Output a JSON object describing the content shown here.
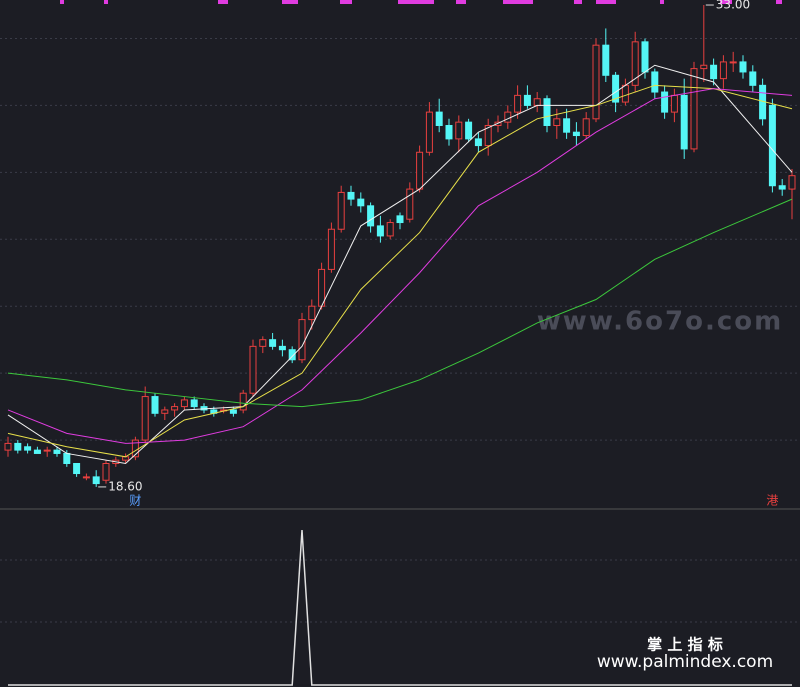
{
  "chart_data": [
    {
      "type": "candlestick",
      "ylim": [
        18.0,
        33.15
      ],
      "grid_values": [
        20,
        22,
        24,
        26,
        28,
        30,
        32
      ],
      "up_color": "#e8403f",
      "down_color": "#54f6f6",
      "ohlc": [
        [
          19.7,
          20.1,
          19.5,
          19.9
        ],
        [
          19.9,
          20.0,
          19.6,
          19.7
        ],
        [
          19.8,
          19.9,
          19.6,
          19.7
        ],
        [
          19.7,
          19.8,
          19.6,
          19.6
        ],
        [
          19.7,
          19.8,
          19.5,
          19.7
        ],
        [
          19.7,
          19.8,
          19.5,
          19.6
        ],
        [
          19.6,
          19.7,
          19.2,
          19.3
        ],
        [
          19.3,
          19.3,
          18.9,
          19.0
        ],
        [
          18.9,
          19.0,
          18.8,
          18.9
        ],
        [
          18.9,
          19.1,
          18.6,
          18.7
        ],
        [
          18.8,
          19.4,
          18.7,
          19.3
        ],
        [
          19.3,
          19.5,
          19.2,
          19.4
        ],
        [
          19.4,
          19.6,
          19.3,
          19.5
        ],
        [
          19.5,
          20.1,
          19.4,
          20.0
        ],
        [
          20.0,
          21.6,
          19.9,
          21.3
        ],
        [
          21.3,
          21.4,
          20.7,
          20.8
        ],
        [
          20.8,
          21.0,
          20.6,
          20.9
        ],
        [
          20.9,
          21.1,
          20.7,
          21.0
        ],
        [
          21.0,
          21.3,
          20.9,
          21.2
        ],
        [
          21.2,
          21.3,
          20.9,
          21.0
        ],
        [
          21.0,
          21.1,
          20.8,
          20.9
        ],
        [
          20.9,
          21.0,
          20.7,
          20.8
        ],
        [
          20.9,
          21.0,
          20.8,
          20.9
        ],
        [
          20.9,
          21.0,
          20.7,
          20.8
        ],
        [
          20.9,
          21.5,
          20.8,
          21.4
        ],
        [
          21.4,
          23.0,
          21.3,
          22.8
        ],
        [
          22.8,
          23.1,
          22.6,
          23.0
        ],
        [
          23.0,
          23.2,
          22.7,
          22.8
        ],
        [
          22.8,
          23.0,
          22.5,
          22.7
        ],
        [
          22.7,
          22.8,
          22.3,
          22.4
        ],
        [
          22.4,
          23.8,
          22.3,
          23.6
        ],
        [
          23.6,
          24.2,
          23.3,
          24.0
        ],
        [
          24.0,
          25.3,
          23.9,
          25.1
        ],
        [
          25.1,
          26.5,
          25.0,
          26.3
        ],
        [
          26.3,
          27.6,
          26.2,
          27.4
        ],
        [
          27.4,
          27.6,
          27.0,
          27.2
        ],
        [
          27.2,
          27.4,
          26.8,
          27.0
        ],
        [
          27.0,
          27.1,
          26.2,
          26.4
        ],
        [
          26.4,
          26.7,
          25.9,
          26.1
        ],
        [
          26.1,
          26.6,
          26.0,
          26.5
        ],
        [
          26.7,
          26.8,
          26.3,
          26.5
        ],
        [
          26.6,
          27.7,
          26.5,
          27.5
        ],
        [
          27.5,
          28.8,
          27.4,
          28.6
        ],
        [
          28.6,
          30.1,
          28.5,
          29.8
        ],
        [
          29.8,
          30.2,
          29.2,
          29.4
        ],
        [
          29.4,
          29.6,
          28.8,
          29.0
        ],
        [
          29.0,
          29.7,
          28.6,
          29.5
        ],
        [
          29.5,
          29.6,
          28.9,
          29.0
        ],
        [
          29.0,
          29.2,
          28.6,
          28.8
        ],
        [
          28.8,
          29.6,
          28.5,
          29.4
        ],
        [
          29.4,
          29.7,
          29.2,
          29.5
        ],
        [
          29.5,
          30.0,
          29.3,
          29.8
        ],
        [
          29.8,
          30.6,
          29.6,
          30.3
        ],
        [
          30.3,
          30.6,
          29.9,
          30.0
        ],
        [
          30.0,
          30.4,
          29.8,
          30.2
        ],
        [
          30.2,
          30.3,
          29.2,
          29.4
        ],
        [
          29.4,
          29.9,
          29.0,
          29.6
        ],
        [
          29.6,
          29.9,
          29.0,
          29.2
        ],
        [
          29.2,
          29.5,
          28.8,
          29.1
        ],
        [
          29.1,
          29.8,
          29.0,
          29.6
        ],
        [
          29.6,
          32.0,
          29.5,
          31.8
        ],
        [
          31.8,
          32.3,
          30.7,
          30.9
        ],
        [
          30.9,
          31.0,
          29.8,
          30.1
        ],
        [
          30.1,
          30.8,
          30.0,
          30.6
        ],
        [
          30.6,
          32.2,
          30.4,
          31.9
        ],
        [
          31.9,
          32.0,
          30.8,
          31.0
        ],
        [
          31.0,
          31.1,
          30.2,
          30.4
        ],
        [
          30.4,
          30.6,
          29.6,
          29.8
        ],
        [
          29.8,
          30.5,
          29.5,
          30.3
        ],
        [
          30.3,
          30.8,
          28.4,
          28.7
        ],
        [
          28.7,
          31.3,
          28.6,
          31.1
        ],
        [
          31.1,
          33.0,
          30.7,
          31.2
        ],
        [
          31.2,
          31.4,
          30.6,
          30.8
        ],
        [
          30.8,
          31.5,
          30.5,
          31.3
        ],
        [
          31.3,
          31.6,
          31.0,
          31.3
        ],
        [
          31.3,
          31.5,
          30.8,
          31.0
        ],
        [
          31.0,
          31.2,
          30.4,
          30.6
        ],
        [
          30.6,
          30.8,
          29.4,
          29.6
        ],
        [
          30.0,
          30.2,
          27.4,
          27.6
        ],
        [
          27.6,
          27.8,
          27.3,
          27.5
        ],
        [
          27.5,
          28.1,
          26.6,
          27.9
        ]
      ],
      "x": [
        0,
        6,
        12,
        18,
        24,
        30,
        36,
        42,
        48,
        54,
        60,
        66,
        72,
        80
      ],
      "series": [
        {
          "color": "#f0f0f0",
          "values": [
            20.75,
            19.6,
            19.3,
            20.9,
            21.0,
            22.8,
            26.4,
            27.5,
            29.2,
            30.0,
            30.0,
            31.2,
            30.7,
            28.0
          ]
        },
        {
          "color": "#e8e04a",
          "values": [
            20.2,
            19.8,
            19.5,
            20.6,
            21.0,
            22.0,
            24.5,
            26.2,
            28.6,
            29.6,
            30.0,
            30.6,
            30.5,
            29.9
          ]
        },
        {
          "color": "#e03ce0",
          "values": [
            20.9,
            20.2,
            19.9,
            20.0,
            20.4,
            21.5,
            23.2,
            25.0,
            27.0,
            28.0,
            29.2,
            30.2,
            30.5,
            30.3
          ]
        },
        {
          "color": "#3cc83c",
          "values": [
            22.0,
            21.8,
            21.5,
            21.3,
            21.1,
            21.0,
            21.2,
            21.8,
            22.6,
            23.5,
            24.2,
            25.4,
            26.2,
            27.2
          ]
        }
      ],
      "annotations": [
        {
          "text": "33.00",
          "index": 71,
          "value": 33.0
        },
        {
          "text": "18.60",
          "index": 9,
          "value": 18.6
        }
      ],
      "event_labels": [
        {
          "text": "财",
          "index": 13,
          "color": "#5aa0ff"
        },
        {
          "text": "港",
          "index": 78,
          "color": "#e8403f"
        }
      ]
    },
    {
      "type": "line",
      "color": "#e0e0e0",
      "ylim": [
        0,
        1
      ],
      "values": [
        0,
        0,
        0,
        0,
        0,
        0,
        0,
        0,
        0,
        0,
        0,
        0,
        0,
        0,
        0,
        0,
        0,
        0,
        0,
        0,
        0,
        0,
        0,
        0,
        0,
        0,
        0,
        0,
        0,
        0,
        1,
        0,
        0,
        0,
        0,
        0,
        0,
        0,
        0,
        0,
        0,
        0,
        0,
        0,
        0,
        0,
        0,
        0,
        0,
        0,
        0,
        0,
        0,
        0,
        0,
        0,
        0,
        0,
        0,
        0,
        0,
        0,
        0,
        0,
        0,
        0,
        0,
        0,
        0,
        0,
        0,
        0,
        0,
        0,
        0,
        0,
        0,
        0,
        0,
        0,
        0
      ]
    }
  ],
  "watermarks": [
    "www.6o7o.com",
    "掌 上 指 标",
    "www.palmindex.com"
  ]
}
